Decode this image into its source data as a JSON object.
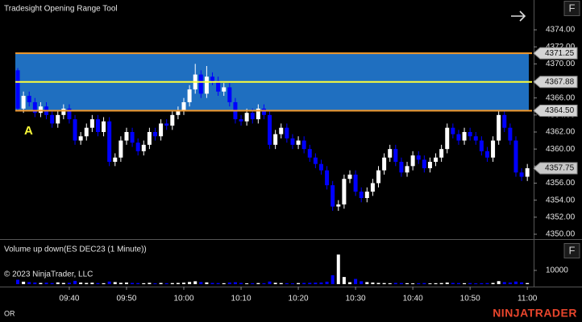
{
  "chart_data": [
    {
      "type": "candlestick",
      "title": "Tradesight Opening Range Tool",
      "up_color": "#ffffff",
      "down_color": "#0000ff",
      "x": [
        1,
        2,
        3,
        4,
        5,
        6,
        7,
        8,
        9,
        10,
        11,
        12,
        13,
        14,
        15,
        16,
        17,
        18,
        19,
        20,
        21,
        22,
        23,
        24,
        25,
        26,
        27,
        28,
        29,
        30,
        31,
        32,
        33,
        34,
        35,
        36,
        37,
        38,
        39,
        40,
        41,
        42,
        43,
        44,
        45,
        46,
        47,
        48,
        49,
        50,
        51,
        52,
        53,
        54,
        55,
        56,
        57,
        58,
        59,
        60,
        61,
        62,
        63,
        64,
        65,
        66,
        67,
        68,
        69,
        70,
        71,
        72,
        73,
        74,
        75,
        76,
        77,
        78,
        79,
        80,
        81,
        82,
        83,
        84,
        85,
        86,
        87,
        88,
        89,
        90
      ],
      "open": [
        4369.25,
        4364.75,
        4366.25,
        4365.5,
        4364.25,
        4365.0,
        4364.0,
        4363.0,
        4364.0,
        4364.75,
        4363.5,
        4361.0,
        4361.5,
        4362.5,
        4363.5,
        4362.0,
        4363.25,
        4358.5,
        4359.0,
        4361.0,
        4362.0,
        4360.75,
        4359.75,
        4360.5,
        4362.0,
        4361.5,
        4363.0,
        4362.75,
        4364.0,
        4364.5,
        4365.5,
        4367.0,
        4368.75,
        4366.5,
        4368.5,
        4368.0,
        4366.75,
        4367.25,
        4365.5,
        4363.5,
        4363.25,
        4364.25,
        4363.5,
        4364.75,
        4364.0,
        4360.5,
        4361.75,
        4362.5,
        4361.25,
        4360.5,
        4361.0,
        4360.0,
        4359.0,
        4358.25,
        4357.5,
        4355.75,
        4353.25,
        4353.5,
        4356.5,
        4357.0,
        4355.0,
        4354.25,
        4355.0,
        4356.0,
        4357.5,
        4359.0,
        4360.0,
        4358.5,
        4357.25,
        4358.0,
        4359.25,
        4358.75,
        4357.75,
        4358.5,
        4359.0,
        4360.0,
        4362.5,
        4361.75,
        4361.0,
        4362.0,
        4361.5,
        4361.0,
        4359.75,
        4359.0,
        4361.0,
        4364.0,
        4362.5,
        4361.0,
        4357.25,
        4356.75
      ],
      "high": [
        4369.5,
        4366.75,
        4366.75,
        4366.0,
        4365.5,
        4365.5,
        4364.5,
        4364.5,
        4365.25,
        4365.25,
        4364.0,
        4362.0,
        4363.0,
        4364.0,
        4364.0,
        4363.75,
        4363.75,
        4359.5,
        4361.5,
        4362.5,
        4362.5,
        4361.25,
        4361.0,
        4362.5,
        4362.5,
        4363.5,
        4363.5,
        4364.5,
        4365.0,
        4366.0,
        4367.5,
        4370.0,
        4369.25,
        4369.75,
        4369.0,
        4368.5,
        4367.75,
        4367.75,
        4366.0,
        4364.0,
        4364.75,
        4364.75,
        4365.25,
        4365.25,
        4364.5,
        4362.25,
        4363.0,
        4363.0,
        4361.75,
        4361.5,
        4361.5,
        4360.5,
        4359.5,
        4358.75,
        4358.0,
        4356.25,
        4354.0,
        4357.0,
        4357.5,
        4357.5,
        4355.5,
        4355.5,
        4356.5,
        4358.0,
        4359.5,
        4360.5,
        4360.5,
        4359.0,
        4358.5,
        4359.75,
        4359.75,
        4359.25,
        4359.0,
        4359.5,
        4360.5,
        4363.0,
        4363.0,
        4362.25,
        4362.5,
        4362.5,
        4362.0,
        4361.5,
        4360.25,
        4361.5,
        4364.5,
        4364.5,
        4363.0,
        4361.5,
        4357.75,
        4358.25
      ],
      "low": [
        4364.5,
        4364.25,
        4365.0,
        4363.75,
        4363.75,
        4363.5,
        4362.5,
        4362.5,
        4363.5,
        4363.0,
        4360.5,
        4360.5,
        4361.0,
        4362.0,
        4361.5,
        4361.5,
        4358.0,
        4358.0,
        4358.5,
        4360.5,
        4360.25,
        4359.25,
        4359.25,
        4360.0,
        4361.0,
        4361.0,
        4362.25,
        4362.25,
        4363.5,
        4364.0,
        4365.0,
        4366.5,
        4366.0,
        4366.0,
        4367.5,
        4366.25,
        4366.25,
        4365.0,
        4363.0,
        4362.75,
        4362.75,
        4363.0,
        4363.0,
        4363.5,
        4360.0,
        4360.0,
        4361.25,
        4360.75,
        4360.0,
        4360.0,
        4359.5,
        4358.5,
        4357.75,
        4357.0,
        4355.25,
        4352.75,
        4352.75,
        4353.0,
        4356.0,
        4354.5,
        4353.75,
        4353.75,
        4354.5,
        4355.5,
        4357.0,
        4358.5,
        4358.0,
        4356.75,
        4356.75,
        4357.5,
        4358.25,
        4357.25,
        4357.25,
        4358.0,
        4358.5,
        4359.5,
        4361.25,
        4360.5,
        4360.5,
        4361.0,
        4360.5,
        4359.25,
        4358.5,
        4358.5,
        4360.5,
        4362.0,
        4360.5,
        4356.75,
        4356.25,
        4356.25
      ],
      "close": [
        4364.75,
        4366.25,
        4365.5,
        4364.25,
        4365.0,
        4364.0,
        4363.0,
        4364.0,
        4364.75,
        4363.5,
        4361.0,
        4361.5,
        4362.5,
        4363.5,
        4362.0,
        4363.25,
        4358.5,
        4359.0,
        4361.0,
        4362.0,
        4360.75,
        4359.75,
        4360.5,
        4362.0,
        4361.5,
        4363.0,
        4362.75,
        4364.0,
        4364.5,
        4365.5,
        4367.0,
        4368.75,
        4366.5,
        4368.5,
        4368.0,
        4366.75,
        4367.25,
        4365.5,
        4363.5,
        4363.25,
        4364.25,
        4363.5,
        4364.75,
        4364.0,
        4360.5,
        4361.75,
        4362.5,
        4361.25,
        4360.5,
        4361.0,
        4360.0,
        4359.0,
        4358.25,
        4357.5,
        4355.75,
        4353.25,
        4353.5,
        4356.5,
        4357.0,
        4355.0,
        4354.25,
        4355.0,
        4356.0,
        4357.5,
        4359.0,
        4360.0,
        4358.5,
        4357.25,
        4358.0,
        4359.25,
        4358.75,
        4357.75,
        4358.5,
        4359.0,
        4360.0,
        4362.5,
        4361.75,
        4361.0,
        4362.0,
        4361.5,
        4361.0,
        4359.75,
        4359.0,
        4361.0,
        4364.0,
        4362.5,
        4361.0,
        4357.25,
        4356.75,
        4357.75
      ],
      "xlim": [
        -2.1,
        91.1
      ],
      "xticks": [
        {
          "value": 10,
          "label": "09:40"
        },
        {
          "value": 20,
          "label": "09:50"
        },
        {
          "value": 30,
          "label": "10:00"
        },
        {
          "value": 40,
          "label": "10:10"
        },
        {
          "value": 50,
          "label": "10:20"
        },
        {
          "value": 60,
          "label": "10:30"
        },
        {
          "value": 70,
          "label": "10:40"
        },
        {
          "value": 80,
          "label": "10:50"
        },
        {
          "value": 90,
          "label": "11:00"
        }
      ],
      "ylim": [
        4349.43,
        4377.5
      ],
      "yticks": [
        {
          "value": 4374,
          "label": "4374.00"
        },
        {
          "value": 4372,
          "label": "4372.00"
        },
        {
          "value": 4370,
          "label": "4370.00"
        },
        {
          "value": 4368,
          "label": "4368.00"
        },
        {
          "value": 4366,
          "label": "4366.00"
        },
        {
          "value": 4364,
          "label": "4364.00"
        },
        {
          "value": 4362,
          "label": "4362.00"
        },
        {
          "value": 4360,
          "label": "4360.00"
        },
        {
          "value": 4358,
          "label": "4358.00"
        },
        {
          "value": 4356,
          "label": "4356.00"
        },
        {
          "value": 4354,
          "label": "4354.00"
        },
        {
          "value": 4352,
          "label": "4352.00"
        },
        {
          "value": 4350,
          "label": "4350.00"
        }
      ],
      "opening_range": {
        "high": 4371.25,
        "mid": 4367.88,
        "low": {
          "value": 4364.5,
          "label": "4364.50"
        },
        "fill_color": "#1f6fc0",
        "edge_color": "#f39a2c",
        "mid_color": "#ffff3a"
      },
      "last_price": 4357.75,
      "annotations": [
        "A"
      ]
    },
    {
      "type": "bar",
      "title": "Volume up down(ES DEC23 (1 Minute))",
      "values": [
        3200,
        1800,
        1500,
        1200,
        900,
        1100,
        800,
        1300,
        900,
        1000,
        2400,
        1200,
        900,
        1100,
        800,
        700,
        1900,
        1500,
        1000,
        1200,
        900,
        800,
        700,
        1000,
        600,
        900,
        700,
        800,
        900,
        1100,
        1600,
        2100,
        1500,
        1300,
        900,
        800,
        700,
        1200,
        1400,
        900,
        600,
        700,
        800,
        700,
        1900,
        1000,
        800,
        700,
        600,
        800,
        900,
        1000,
        1100,
        1200,
        1800,
        6500,
        21500,
        5200,
        1400,
        3800,
        2100,
        1500,
        1200,
        900,
        800,
        700,
        900,
        800,
        700,
        600,
        700,
        800,
        600,
        700,
        800,
        1200,
        900,
        800,
        700,
        800,
        600,
        700,
        800,
        900,
        2200,
        1500,
        1200,
        1900,
        1300,
        800
      ],
      "ylim": [
        0,
        31000
      ],
      "yticks": [
        10000
      ]
    }
  ],
  "copyright": "© 2023 NinjaTrader, LLC",
  "footer_tab": "OR",
  "brand": "NINJATRADER",
  "buttons": [
    "F",
    "F"
  ]
}
